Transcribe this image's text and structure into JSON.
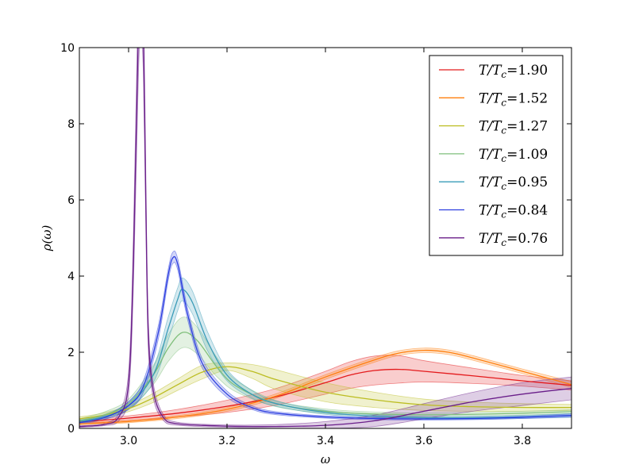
{
  "chart_data": {
    "type": "line",
    "xlabel": "ω",
    "ylabel": "ρ(ω)",
    "xlim": [
      2.9,
      3.9
    ],
    "ylim": [
      0,
      10
    ],
    "xticks": [
      3.0,
      3.2,
      3.4,
      3.6,
      3.8
    ],
    "xtick_labels": [
      "3.0",
      "3.2",
      "3.4",
      "3.6",
      "3.8"
    ],
    "yticks": [
      0,
      2,
      4,
      6,
      8,
      10
    ],
    "ytick_labels": [
      "0",
      "2",
      "4",
      "6",
      "8",
      "10"
    ],
    "grid": false,
    "legend_position": "top-right",
    "series": [
      {
        "name": "T/Tc=1.90",
        "color": "#e41a1c",
        "x": [
          2.9,
          3.0,
          3.1,
          3.2,
          3.3,
          3.4,
          3.45,
          3.5,
          3.55,
          3.6,
          3.7,
          3.8,
          3.9
        ],
        "y": [
          0.17,
          0.27,
          0.4,
          0.58,
          0.83,
          1.2,
          1.4,
          1.52,
          1.55,
          1.5,
          1.38,
          1.25,
          1.13
        ],
        "band": [
          0.05,
          0.06,
          0.1,
          0.16,
          0.22,
          0.3,
          0.35,
          0.38,
          0.36,
          0.28,
          0.2,
          0.14,
          0.12
        ]
      },
      {
        "name": "T/Tc=1.52",
        "color": "#ff7f0e",
        "x": [
          2.9,
          3.0,
          3.1,
          3.2,
          3.3,
          3.4,
          3.5,
          3.55,
          3.6,
          3.65,
          3.7,
          3.8,
          3.9
        ],
        "y": [
          0.12,
          0.18,
          0.3,
          0.5,
          0.85,
          1.35,
          1.8,
          1.98,
          2.05,
          2.0,
          1.85,
          1.5,
          1.15
        ],
        "band": [
          0.03,
          0.03,
          0.04,
          0.05,
          0.06,
          0.06,
          0.06,
          0.06,
          0.06,
          0.06,
          0.06,
          0.06,
          0.08
        ]
      },
      {
        "name": "T/Tc=1.27",
        "color": "#bcbd22",
        "x": [
          2.9,
          2.95,
          3.0,
          3.05,
          3.1,
          3.15,
          3.2,
          3.25,
          3.3,
          3.4,
          3.5,
          3.6,
          3.7,
          3.8,
          3.9
        ],
        "y": [
          0.25,
          0.35,
          0.52,
          0.8,
          1.15,
          1.48,
          1.62,
          1.5,
          1.28,
          0.95,
          0.75,
          0.62,
          0.57,
          0.55,
          0.55
        ],
        "band": [
          0.05,
          0.06,
          0.08,
          0.12,
          0.15,
          0.18,
          0.1,
          0.18,
          0.26,
          0.25,
          0.2,
          0.15,
          0.12,
          0.1,
          0.08
        ]
      },
      {
        "name": "T/Tc=1.09",
        "color": "#7fbf7b",
        "x": [
          2.9,
          2.95,
          3.0,
          3.05,
          3.08,
          3.11,
          3.14,
          3.18,
          3.22,
          3.3,
          3.4,
          3.5,
          3.6,
          3.7,
          3.8,
          3.9
        ],
        "y": [
          0.2,
          0.35,
          0.65,
          1.4,
          2.1,
          2.52,
          2.3,
          1.6,
          1.1,
          0.65,
          0.45,
          0.38,
          0.36,
          0.37,
          0.4,
          0.44
        ],
        "band": [
          0.05,
          0.08,
          0.12,
          0.25,
          0.35,
          0.4,
          0.35,
          0.25,
          0.15,
          0.08,
          0.06,
          0.05,
          0.05,
          0.05,
          0.05,
          0.05
        ]
      },
      {
        "name": "T/Tc=0.95",
        "color": "#3a9bb8",
        "x": [
          2.9,
          2.95,
          3.0,
          3.05,
          3.08,
          3.1,
          3.11,
          3.13,
          3.16,
          3.2,
          3.25,
          3.3,
          3.4,
          3.5,
          3.6,
          3.7,
          3.8,
          3.9
        ],
        "y": [
          0.18,
          0.3,
          0.6,
          1.4,
          2.6,
          3.4,
          3.65,
          3.3,
          2.3,
          1.4,
          0.9,
          0.65,
          0.42,
          0.32,
          0.28,
          0.28,
          0.3,
          0.34
        ],
        "band": [
          0.04,
          0.06,
          0.1,
          0.2,
          0.3,
          0.3,
          0.3,
          0.3,
          0.25,
          0.15,
          0.1,
          0.07,
          0.05,
          0.04,
          0.04,
          0.04,
          0.04,
          0.05
        ]
      },
      {
        "name": "T/Tc=0.84",
        "color": "#2d3fe0",
        "x": [
          2.9,
          2.95,
          3.0,
          3.03,
          3.06,
          3.08,
          3.09,
          3.1,
          3.12,
          3.15,
          3.2,
          3.25,
          3.3,
          3.4,
          3.5,
          3.6,
          3.7,
          3.8,
          3.9
        ],
        "y": [
          0.15,
          0.28,
          0.6,
          1.1,
          2.5,
          4.0,
          4.48,
          4.3,
          3.0,
          1.7,
          0.9,
          0.55,
          0.4,
          0.3,
          0.26,
          0.25,
          0.26,
          0.29,
          0.34
        ],
        "band": [
          0.03,
          0.05,
          0.1,
          0.15,
          0.18,
          0.15,
          0.15,
          0.15,
          0.15,
          0.12,
          0.08,
          0.05,
          0.04,
          0.03,
          0.03,
          0.03,
          0.03,
          0.03,
          0.04
        ]
      },
      {
        "name": "T/Tc=0.76",
        "color": "#6a1e8a",
        "x": [
          2.9,
          2.95,
          2.98,
          3.0,
          3.01,
          3.02,
          3.025,
          3.03,
          3.035,
          3.04,
          3.05,
          3.07,
          3.1,
          3.2,
          3.3,
          3.4,
          3.5,
          3.6,
          3.7,
          3.8,
          3.9
        ],
        "y": [
          0.05,
          0.1,
          0.3,
          1.2,
          4.5,
          10.5,
          11.5,
          10.5,
          6.0,
          2.5,
          1.0,
          0.3,
          0.12,
          0.06,
          0.05,
          0.08,
          0.2,
          0.45,
          0.7,
          0.9,
          1.05
        ],
        "band": [
          0.02,
          0.03,
          0.1,
          0.3,
          0.7,
          1.2,
          1.2,
          1.2,
          0.7,
          0.4,
          0.2,
          0.08,
          0.04,
          0.03,
          0.05,
          0.1,
          0.15,
          0.2,
          0.25,
          0.3,
          0.3
        ]
      }
    ]
  },
  "legend": {
    "items": [
      {
        "prefix": "T/T",
        "sub": "c",
        "value": "=1.90"
      },
      {
        "prefix": "T/T",
        "sub": "c",
        "value": "=1.52"
      },
      {
        "prefix": "T/T",
        "sub": "c",
        "value": "=1.27"
      },
      {
        "prefix": "T/T",
        "sub": "c",
        "value": "=1.09"
      },
      {
        "prefix": "T/T",
        "sub": "c",
        "value": "=0.95"
      },
      {
        "prefix": "T/T",
        "sub": "c",
        "value": "=0.84"
      },
      {
        "prefix": "T/T",
        "sub": "c",
        "value": "=0.76"
      }
    ]
  }
}
